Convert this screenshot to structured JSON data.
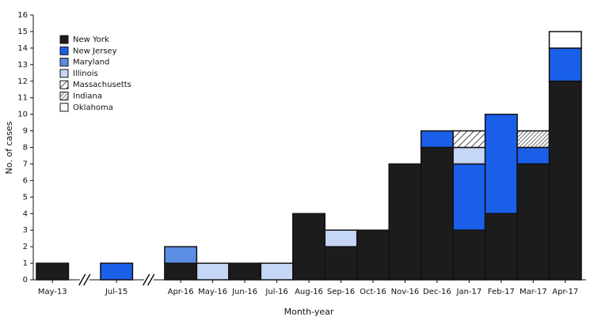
{
  "chart_data": {
    "type": "stacked-bar",
    "x_label": "Month-year",
    "y_label": "No. of cases",
    "categories": [
      "May-13",
      null,
      "Jul-15",
      null,
      "Apr-16",
      "May-16",
      "Jun-16",
      "Jul-16",
      "Aug-16",
      "Sep-16",
      "Oct-16",
      "Nov-16",
      "Dec-16",
      "Jan-17",
      "Feb-17",
      "Mar-17",
      "Apr-17"
    ],
    "series": [
      {
        "name": "New York",
        "color": "#1c1c1c",
        "values": [
          1,
          null,
          0,
          null,
          1,
          0,
          1,
          0,
          4,
          2,
          3,
          7,
          8,
          3,
          4,
          7,
          12
        ]
      },
      {
        "name": "New Jersey",
        "color": "#1a5fe8",
        "values": [
          0,
          null,
          1,
          null,
          0,
          0,
          0,
          0,
          0,
          0,
          0,
          0,
          1,
          4,
          6,
          1,
          2
        ]
      },
      {
        "name": "Maryland",
        "color": "#5b8de3",
        "values": [
          0,
          null,
          0,
          null,
          1,
          0,
          0,
          0,
          0,
          0,
          0,
          0,
          0,
          0,
          0,
          0,
          0
        ]
      },
      {
        "name": "Illinois",
        "color": "#c6d6f6",
        "values": [
          0,
          null,
          0,
          null,
          0,
          1,
          0,
          1,
          0,
          1,
          0,
          0,
          0,
          1,
          0,
          0,
          0
        ]
      },
      {
        "name": "Massachusetts",
        "color": "#ffffff",
        "hatch": "wide",
        "values": [
          0,
          null,
          0,
          null,
          0,
          0,
          0,
          0,
          0,
          0,
          0,
          0,
          0,
          1,
          0,
          0,
          0
        ]
      },
      {
        "name": "Indiana",
        "color": "#ffffff",
        "hatch": "narrow",
        "values": [
          0,
          null,
          0,
          null,
          0,
          0,
          0,
          0,
          0,
          0,
          0,
          0,
          0,
          0,
          0,
          1,
          0
        ]
      },
      {
        "name": "Oklahoma",
        "color": "#ffffff",
        "values": [
          0,
          null,
          0,
          null,
          0,
          0,
          0,
          0,
          0,
          0,
          0,
          0,
          0,
          0,
          0,
          0,
          1
        ]
      }
    ],
    "ylim": [
      0,
      16
    ],
    "yticks": [
      0,
      1,
      2,
      3,
      4,
      5,
      6,
      7,
      8,
      9,
      10,
      11,
      12,
      13,
      14,
      15,
      16
    ],
    "legend": "upper left"
  }
}
